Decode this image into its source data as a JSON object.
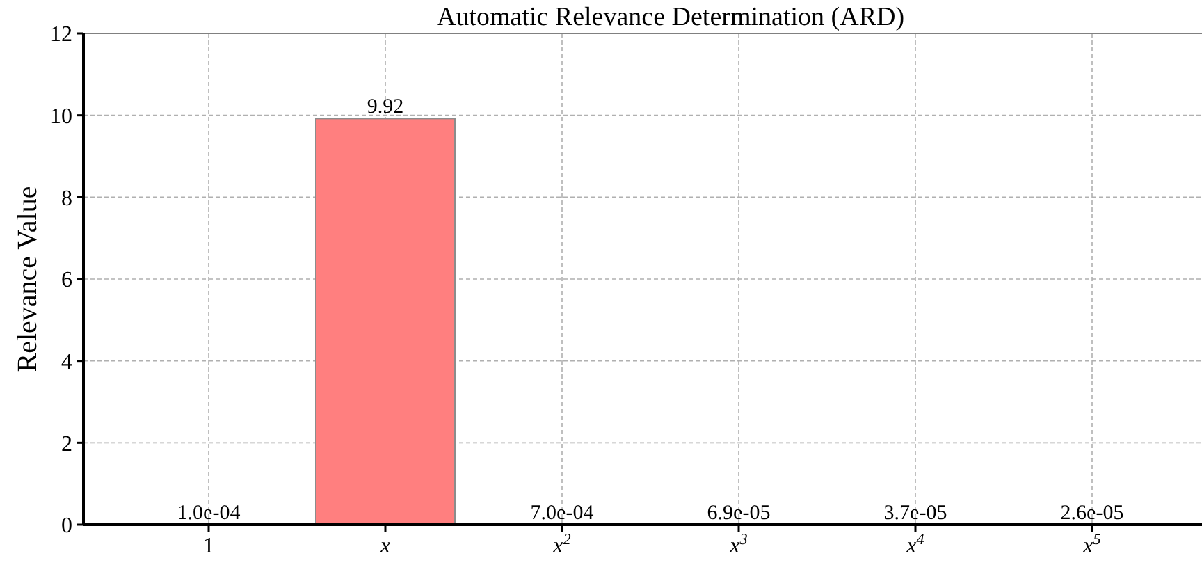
{
  "chart_data": {
    "type": "bar",
    "title": "Automatic Relevance Determination (ARD)",
    "ylabel": "Relevance Value",
    "categories": [
      "1",
      "x",
      "x$^{2}$",
      "x$^{3}$",
      "x$^{4}$",
      "x$^{5}$"
    ],
    "values": [
      0.0001,
      9.92,
      0.0007,
      6.9e-05,
      3.7e-05,
      2.6e-05
    ],
    "value_labels": [
      "1.0e-04",
      "9.92",
      "7.0e-04",
      "6.9e-05",
      "3.7e-05",
      "2.6e-05"
    ],
    "color": "#ff7f7f",
    "ylim": [
      0,
      12
    ],
    "yticks": [
      0,
      2,
      4,
      6,
      8,
      10,
      12
    ],
    "grid": true
  }
}
